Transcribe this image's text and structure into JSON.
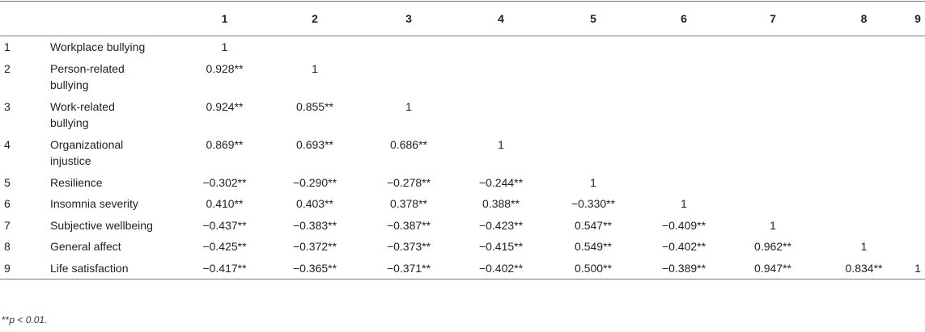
{
  "table": {
    "header": [
      "1",
      "2",
      "3",
      "4",
      "5",
      "6",
      "7",
      "8",
      "9"
    ],
    "rows": [
      {
        "num": "1",
        "label": "Workplace bullying",
        "cells": [
          "1"
        ]
      },
      {
        "num": "2",
        "label": "Person-related bullying",
        "cells": [
          "0.928**",
          "1"
        ]
      },
      {
        "num": "3",
        "label": "Work-related bullying",
        "cells": [
          "0.924**",
          "0.855**",
          "1"
        ]
      },
      {
        "num": "4",
        "label": "Organizational injustice",
        "cells": [
          "0.869**",
          "0.693**",
          "0.686**",
          "1"
        ]
      },
      {
        "num": "5",
        "label": "Resilience",
        "cells": [
          "−0.302**",
          "−0.290**",
          "−0.278**",
          "−0.244**",
          "1"
        ]
      },
      {
        "num": "6",
        "label": "Insomnia severity",
        "cells": [
          "0.410**",
          "0.403**",
          "0.378**",
          "0.388**",
          "−0.330**",
          "1"
        ]
      },
      {
        "num": "7",
        "label": "Subjective wellbeing",
        "cells": [
          "−0.437**",
          "−0.383**",
          "−0.387**",
          "−0.423**",
          "0.547**",
          "−0.409**",
          "1"
        ]
      },
      {
        "num": "8",
        "label": "General affect",
        "cells": [
          "−0.425**",
          "−0.372**",
          "−0.373**",
          "−0.415**",
          "0.549**",
          "−0.402**",
          "0.962**",
          "1"
        ]
      },
      {
        "num": "9",
        "label": "Life satisfaction",
        "cells": [
          "−0.417**",
          "−0.365**",
          "−0.371**",
          "−0.402**",
          "0.500**",
          "−0.389**",
          "0.947**",
          "0.834**",
          "1"
        ]
      }
    ]
  },
  "footnote": {
    "marker": "**",
    "text": "p < 0.01",
    "end": "."
  }
}
